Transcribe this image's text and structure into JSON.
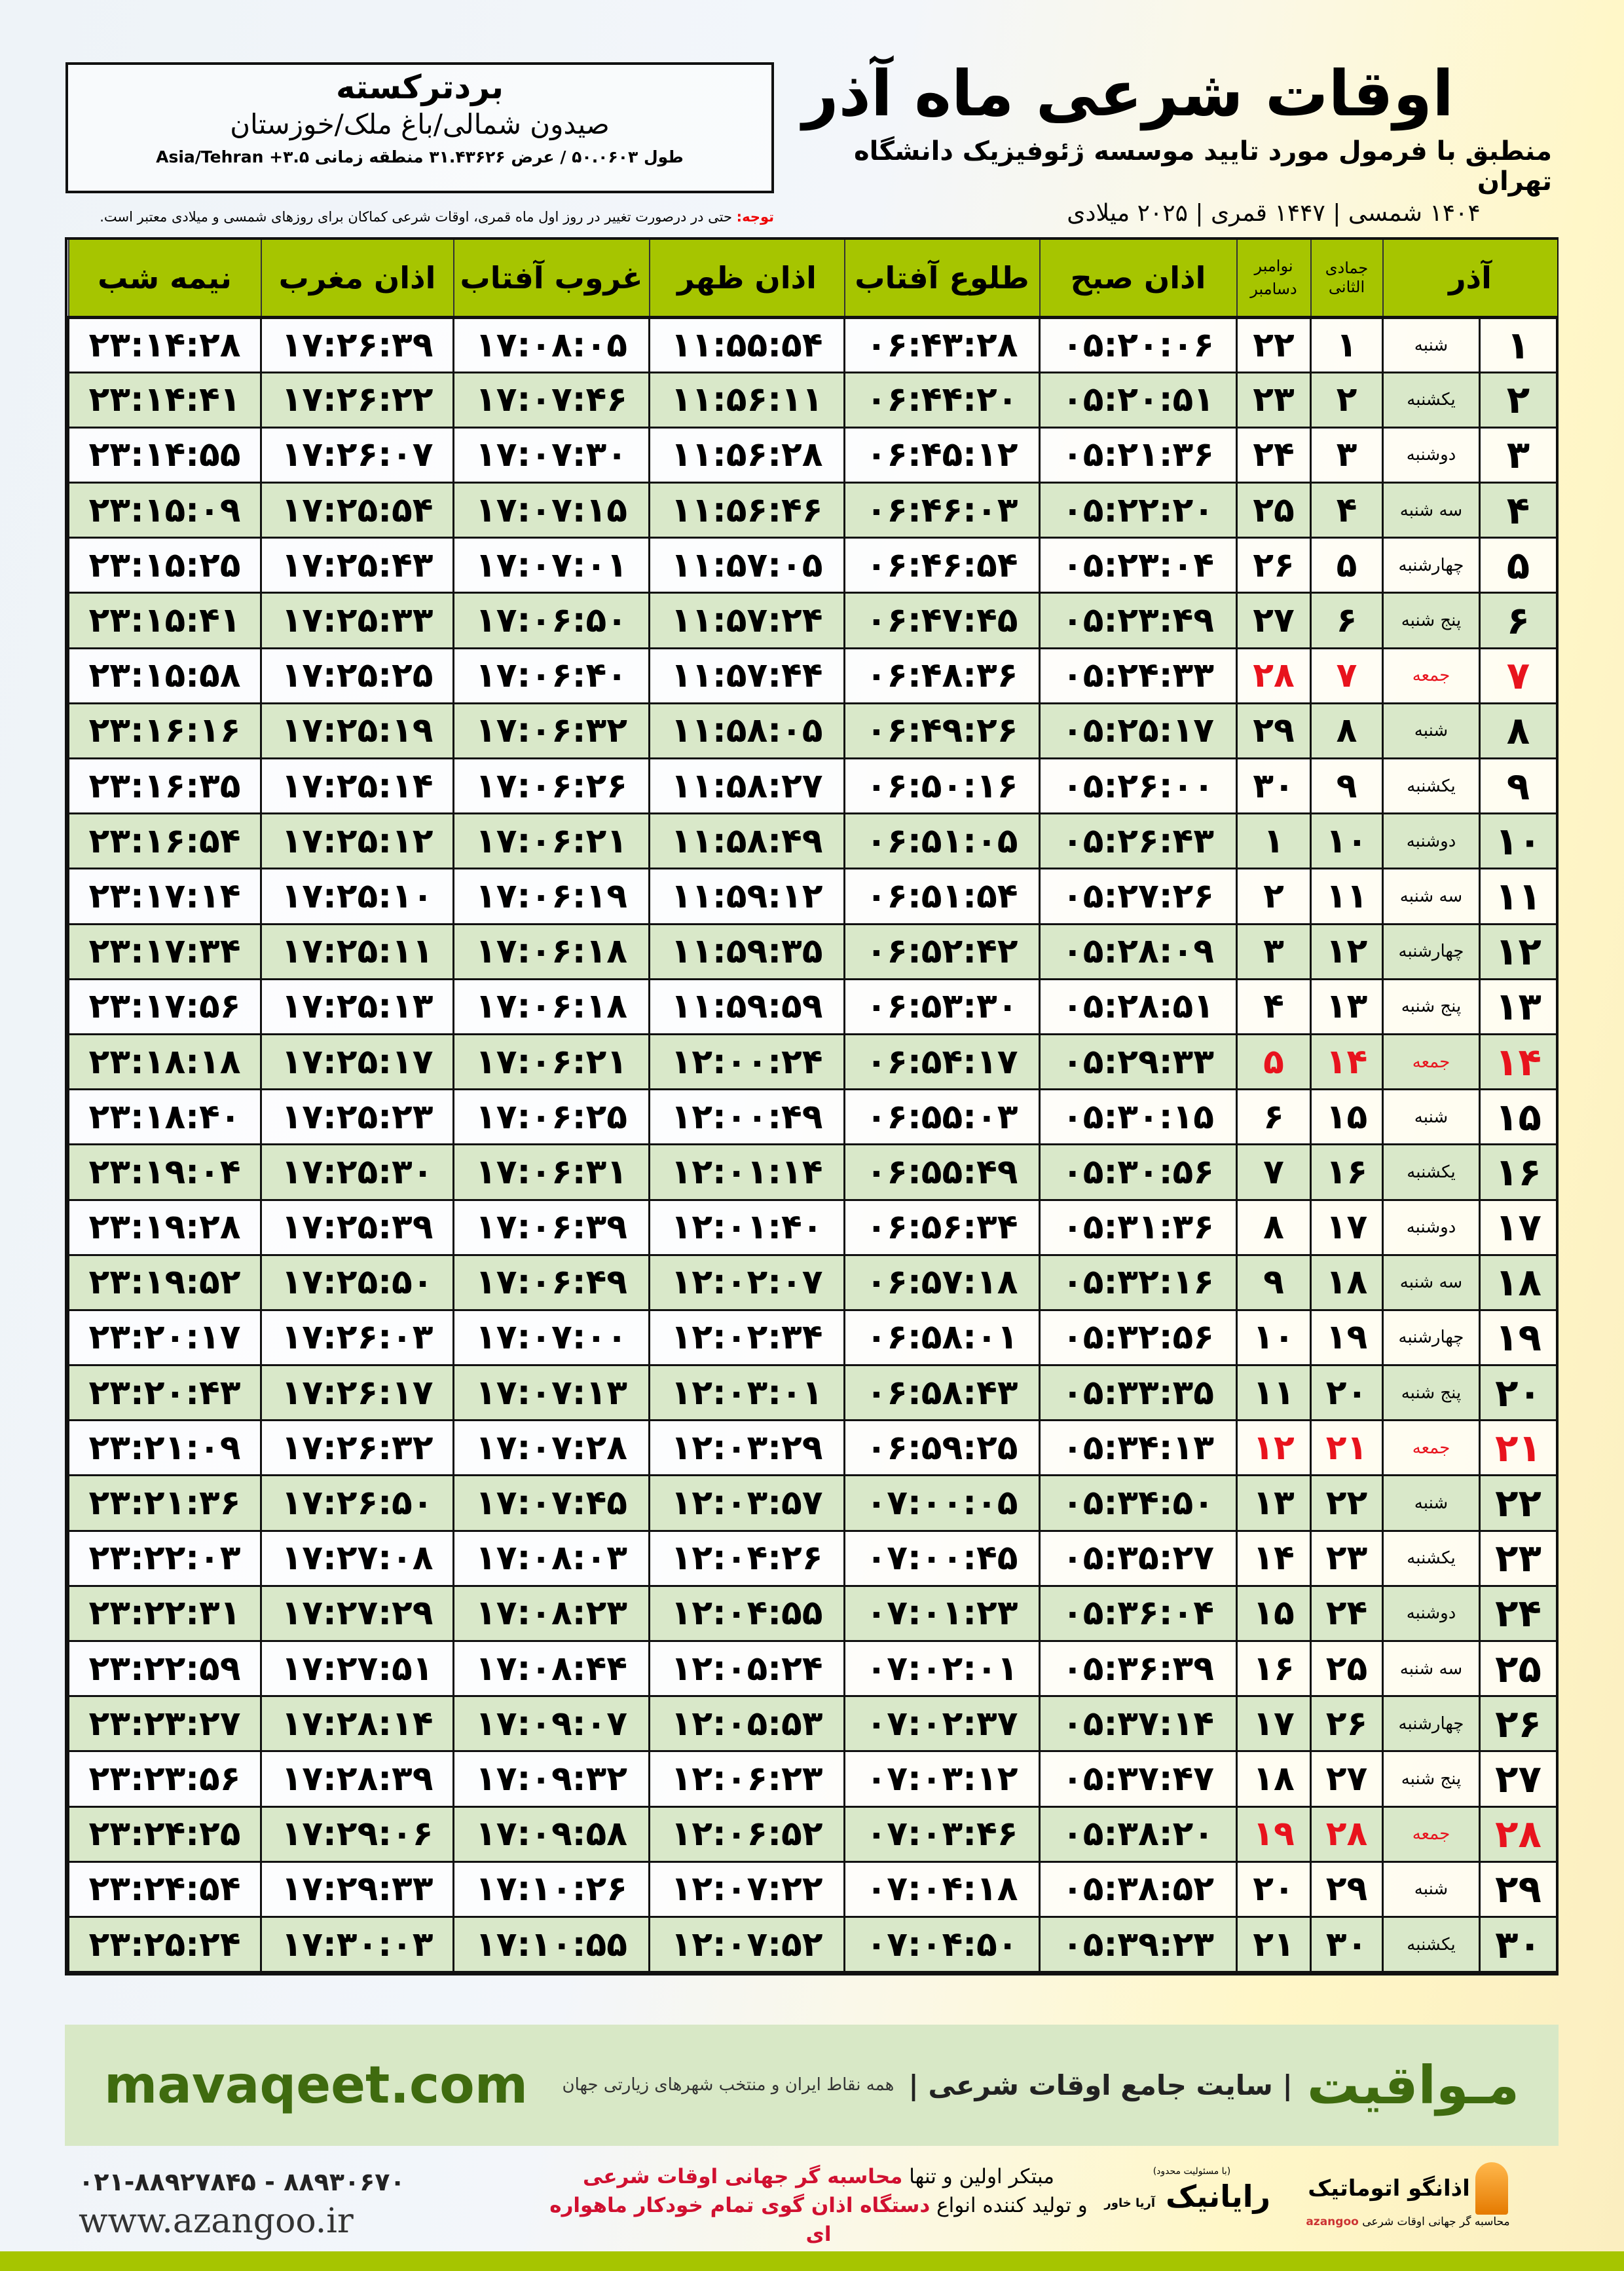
{
  "header": {
    "title": "اوقات شرعی ماه آذر",
    "subtitle": "منطبق با فرمول مورد تایید موسسه ژئوفیزیک دانشگاه تهران",
    "dateline": "۱۴۰۴ شمسی | ۱۴۴۷ قمری | ۲۰۲۵ میلادی",
    "location": {
      "name": "بردترکسته",
      "region": "صیدون شمالی/باغ ملک/خوزستان",
      "coords": "طول ۵۰.۰۶۰۳ / عرض ۳۱.۴۳۶۲۶ منطقه زمانی ۳.۵+ Asia/Tehran"
    },
    "note_label": "توجه:",
    "note": " حتی در درصورت تغییر در روز اول ماه قمری، اوقات شرعی کماکان برای روزهای شمسی و میلادی معتبر است."
  },
  "table": {
    "headers": {
      "month": "آذر",
      "hijri": "جمادی الثانی",
      "greg_top": "نوامبر",
      "greg_bottom": "دسامبر",
      "fajr": "اذان صبح",
      "sunrise": "طلوع آفتاب",
      "dhuhr": "اذان ظهر",
      "sunset": "غروب آفتاب",
      "maghrib": "اذان مغرب",
      "midnight": "نیمه شب"
    },
    "holiday_color": "#e8131d",
    "rows": [
      [
        "۱",
        "شنبه",
        "۱",
        "۲۲",
        "۰۵:۲۰:۰۶",
        "۰۶:۴۳:۲۸",
        "۱۱:۵۵:۵۴",
        "۱۷:۰۸:۰۵",
        "۱۷:۲۶:۳۹",
        "۲۳:۱۴:۲۸"
      ],
      [
        "۲",
        "یکشنبه",
        "۲",
        "۲۳",
        "۰۵:۲۰:۵۱",
        "۰۶:۴۴:۲۰",
        "۱۱:۵۶:۱۱",
        "۱۷:۰۷:۴۶",
        "۱۷:۲۶:۲۲",
        "۲۳:۱۴:۴۱"
      ],
      [
        "۳",
        "دوشنبه",
        "۳",
        "۲۴",
        "۰۵:۲۱:۳۶",
        "۰۶:۴۵:۱۲",
        "۱۱:۵۶:۲۸",
        "۱۷:۰۷:۳۰",
        "۱۷:۲۶:۰۷",
        "۲۳:۱۴:۵۵"
      ],
      [
        "۴",
        "سه شنبه",
        "۴",
        "۲۵",
        "۰۵:۲۲:۲۰",
        "۰۶:۴۶:۰۳",
        "۱۱:۵۶:۴۶",
        "۱۷:۰۷:۱۵",
        "۱۷:۲۵:۵۴",
        "۲۳:۱۵:۰۹"
      ],
      [
        "۵",
        "چهارشنبه",
        "۵",
        "۲۶",
        "۰۵:۲۳:۰۴",
        "۰۶:۴۶:۵۴",
        "۱۱:۵۷:۰۵",
        "۱۷:۰۷:۰۱",
        "۱۷:۲۵:۴۳",
        "۲۳:۱۵:۲۵"
      ],
      [
        "۶",
        "پنج شنبه",
        "۶",
        "۲۷",
        "۰۵:۲۳:۴۹",
        "۰۶:۴۷:۴۵",
        "۱۱:۵۷:۲۴",
        "۱۷:۰۶:۵۰",
        "۱۷:۲۵:۳۳",
        "۲۳:۱۵:۴۱"
      ],
      [
        "۷",
        "جمعه",
        "۷",
        "۲۸",
        "۰۵:۲۴:۳۳",
        "۰۶:۴۸:۳۶",
        "۱۱:۵۷:۴۴",
        "۱۷:۰۶:۴۰",
        "۱۷:۲۵:۲۵",
        "۲۳:۱۵:۵۸"
      ],
      [
        "۸",
        "شنبه",
        "۸",
        "۲۹",
        "۰۵:۲۵:۱۷",
        "۰۶:۴۹:۲۶",
        "۱۱:۵۸:۰۵",
        "۱۷:۰۶:۳۲",
        "۱۷:۲۵:۱۹",
        "۲۳:۱۶:۱۶"
      ],
      [
        "۹",
        "یکشنبه",
        "۹",
        "۳۰",
        "۰۵:۲۶:۰۰",
        "۰۶:۵۰:۱۶",
        "۱۱:۵۸:۲۷",
        "۱۷:۰۶:۲۶",
        "۱۷:۲۵:۱۴",
        "۲۳:۱۶:۳۵"
      ],
      [
        "۱۰",
        "دوشنبه",
        "۱۰",
        "۱",
        "۰۵:۲۶:۴۳",
        "۰۶:۵۱:۰۵",
        "۱۱:۵۸:۴۹",
        "۱۷:۰۶:۲۱",
        "۱۷:۲۵:۱۲",
        "۲۳:۱۶:۵۴"
      ],
      [
        "۱۱",
        "سه شنبه",
        "۱۱",
        "۲",
        "۰۵:۲۷:۲۶",
        "۰۶:۵۱:۵۴",
        "۱۱:۵۹:۱۲",
        "۱۷:۰۶:۱۹",
        "۱۷:۲۵:۱۰",
        "۲۳:۱۷:۱۴"
      ],
      [
        "۱۲",
        "چهارشنبه",
        "۱۲",
        "۳",
        "۰۵:۲۸:۰۹",
        "۰۶:۵۲:۴۲",
        "۱۱:۵۹:۳۵",
        "۱۷:۰۶:۱۸",
        "۱۷:۲۵:۱۱",
        "۲۳:۱۷:۳۴"
      ],
      [
        "۱۳",
        "پنج شنبه",
        "۱۳",
        "۴",
        "۰۵:۲۸:۵۱",
        "۰۶:۵۳:۳۰",
        "۱۱:۵۹:۵۹",
        "۱۷:۰۶:۱۸",
        "۱۷:۲۵:۱۳",
        "۲۳:۱۷:۵۶"
      ],
      [
        "۱۴",
        "جمعه",
        "۱۴",
        "۵",
        "۰۵:۲۹:۳۳",
        "۰۶:۵۴:۱۷",
        "۱۲:۰۰:۲۴",
        "۱۷:۰۶:۲۱",
        "۱۷:۲۵:۱۷",
        "۲۳:۱۸:۱۸"
      ],
      [
        "۱۵",
        "شنبه",
        "۱۵",
        "۶",
        "۰۵:۳۰:۱۵",
        "۰۶:۵۵:۰۳",
        "۱۲:۰۰:۴۹",
        "۱۷:۰۶:۲۵",
        "۱۷:۲۵:۲۳",
        "۲۳:۱۸:۴۰"
      ],
      [
        "۱۶",
        "یکشنبه",
        "۱۶",
        "۷",
        "۰۵:۳۰:۵۶",
        "۰۶:۵۵:۴۹",
        "۱۲:۰۱:۱۴",
        "۱۷:۰۶:۳۱",
        "۱۷:۲۵:۳۰",
        "۲۳:۱۹:۰۴"
      ],
      [
        "۱۷",
        "دوشنبه",
        "۱۷",
        "۸",
        "۰۵:۳۱:۳۶",
        "۰۶:۵۶:۳۴",
        "۱۲:۰۱:۴۰",
        "۱۷:۰۶:۳۹",
        "۱۷:۲۵:۳۹",
        "۲۳:۱۹:۲۸"
      ],
      [
        "۱۸",
        "سه شنبه",
        "۱۸",
        "۹",
        "۰۵:۳۲:۱۶",
        "۰۶:۵۷:۱۸",
        "۱۲:۰۲:۰۷",
        "۱۷:۰۶:۴۹",
        "۱۷:۲۵:۵۰",
        "۲۳:۱۹:۵۲"
      ],
      [
        "۱۹",
        "چهارشنبه",
        "۱۹",
        "۱۰",
        "۰۵:۳۲:۵۶",
        "۰۶:۵۸:۰۱",
        "۱۲:۰۲:۳۴",
        "۱۷:۰۷:۰۰",
        "۱۷:۲۶:۰۳",
        "۲۳:۲۰:۱۷"
      ],
      [
        "۲۰",
        "پنج شنبه",
        "۲۰",
        "۱۱",
        "۰۵:۳۳:۳۵",
        "۰۶:۵۸:۴۳",
        "۱۲:۰۳:۰۱",
        "۱۷:۰۷:۱۳",
        "۱۷:۲۶:۱۷",
        "۲۳:۲۰:۴۳"
      ],
      [
        "۲۱",
        "جمعه",
        "۲۱",
        "۱۲",
        "۰۵:۳۴:۱۳",
        "۰۶:۵۹:۲۵",
        "۱۲:۰۳:۲۹",
        "۱۷:۰۷:۲۸",
        "۱۷:۲۶:۳۲",
        "۲۳:۲۱:۰۹"
      ],
      [
        "۲۲",
        "شنبه",
        "۲۲",
        "۱۳",
        "۰۵:۳۴:۵۰",
        "۰۷:۰۰:۰۵",
        "۱۲:۰۳:۵۷",
        "۱۷:۰۷:۴۵",
        "۱۷:۲۶:۵۰",
        "۲۳:۲۱:۳۶"
      ],
      [
        "۲۳",
        "یکشنبه",
        "۲۳",
        "۱۴",
        "۰۵:۳۵:۲۷",
        "۰۷:۰۰:۴۵",
        "۱۲:۰۴:۲۶",
        "۱۷:۰۸:۰۳",
        "۱۷:۲۷:۰۸",
        "۲۳:۲۲:۰۳"
      ],
      [
        "۲۴",
        "دوشنبه",
        "۲۴",
        "۱۵",
        "۰۵:۳۶:۰۴",
        "۰۷:۰۱:۲۳",
        "۱۲:۰۴:۵۵",
        "۱۷:۰۸:۲۳",
        "۱۷:۲۷:۲۹",
        "۲۳:۲۲:۳۱"
      ],
      [
        "۲۵",
        "سه شنبه",
        "۲۵",
        "۱۶",
        "۰۵:۳۶:۳۹",
        "۰۷:۰۲:۰۱",
        "۱۲:۰۵:۲۴",
        "۱۷:۰۸:۴۴",
        "۱۷:۲۷:۵۱",
        "۲۳:۲۲:۵۹"
      ],
      [
        "۲۶",
        "چهارشنبه",
        "۲۶",
        "۱۷",
        "۰۵:۳۷:۱۴",
        "۰۷:۰۲:۳۷",
        "۱۲:۰۵:۵۳",
        "۱۷:۰۹:۰۷",
        "۱۷:۲۸:۱۴",
        "۲۳:۲۳:۲۷"
      ],
      [
        "۲۷",
        "پنج شنبه",
        "۲۷",
        "۱۸",
        "۰۵:۳۷:۴۷",
        "۰۷:۰۳:۱۲",
        "۱۲:۰۶:۲۳",
        "۱۷:۰۹:۳۲",
        "۱۷:۲۸:۳۹",
        "۲۳:۲۳:۵۶"
      ],
      [
        "۲۸",
        "جمعه",
        "۲۸",
        "۱۹",
        "۰۵:۳۸:۲۰",
        "۰۷:۰۳:۴۶",
        "۱۲:۰۶:۵۲",
        "۱۷:۰۹:۵۸",
        "۱۷:۲۹:۰۶",
        "۲۳:۲۴:۲۵"
      ],
      [
        "۲۹",
        "شنبه",
        "۲۹",
        "۲۰",
        "۰۵:۳۸:۵۲",
        "۰۷:۰۴:۱۸",
        "۱۲:۰۷:۲۲",
        "۱۷:۱۰:۲۶",
        "۱۷:۲۹:۳۳",
        "۲۳:۲۴:۵۴"
      ],
      [
        "۳۰",
        "یکشنبه",
        "۳۰",
        "۲۱",
        "۰۵:۳۹:۲۳",
        "۰۷:۰۴:۵۰",
        "۱۲:۰۷:۵۲",
        "۱۷:۱۰:۵۵",
        "۱۷:۳۰:۰۳",
        "۲۳:۲۵:۲۴"
      ]
    ]
  },
  "footer": {
    "brand": "مـواقیت",
    "tagline": "| سایت جامع اوقات شرعی |",
    "sub": "همه نقاط ایران و منتخب شهرهای زیارتی جهان",
    "site": "mavaqeet.com",
    "phone": "۰۲۱-۸۸۹۲۷۸۴۵ - ۸۸۹۳۰۶۷۰",
    "web": "www.azangoo.ir",
    "promo1a": "مبتکر اولین و تنها ",
    "promo1b": "محاسبه گر جهانی اوقات شرعی",
    "promo2a": "و تولید کننده انواع ",
    "promo2b": "دستگاه اذان گوی تمام خودکار ماهواره ای",
    "logo_azangoo": "اذانگو اتوماتیک",
    "logo_azangoo_sub": "محاسبه گر جهانی اوقات شرعی",
    "logo_azangoo_en": "azangoo",
    "logo_rayanik": "رایانیک",
    "logo_rayanik_sub": "آریا خاور",
    "logo_rayanik_note": "(با مسئولیت محدود)",
    "accent": "#a6c500",
    "brand_color": "#3f6b0f"
  }
}
